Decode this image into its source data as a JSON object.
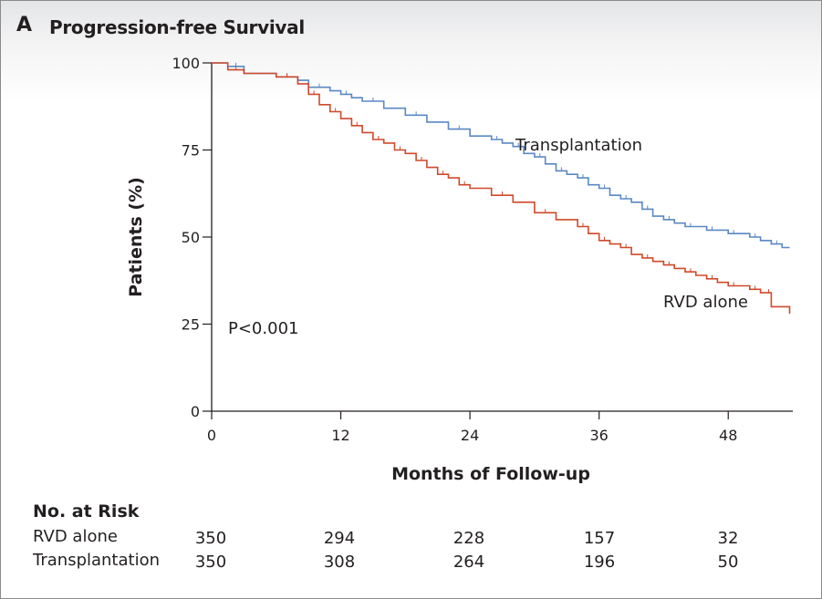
{
  "panel": {
    "label": "A",
    "title": "Progression-free Survival"
  },
  "chart_data": {
    "type": "line",
    "title": "Progression-free Survival",
    "xlabel": "Months of Follow-up",
    "ylabel": "Patients (%)",
    "xlim": [
      0,
      54
    ],
    "ylim": [
      0,
      100
    ],
    "x_ticks": [
      0,
      12,
      24,
      36,
      48
    ],
    "y_ticks": [
      0,
      25,
      50,
      75,
      100
    ],
    "annotation": "P<0.001",
    "series": [
      {
        "name": "Transplantation",
        "color": "#5b88c4",
        "x": [
          0,
          1.5,
          3,
          6,
          8,
          9,
          11,
          12,
          13,
          14,
          16,
          18,
          20,
          22,
          24,
          26,
          27,
          28,
          29,
          30,
          31,
          32,
          33,
          34,
          35,
          36,
          37,
          38,
          39,
          40,
          41,
          42,
          43,
          44,
          45,
          46,
          47,
          48,
          49,
          50,
          51,
          52,
          53,
          53.7
        ],
        "y": [
          100,
          99,
          97,
          96,
          95,
          93,
          92,
          91,
          90,
          89,
          87,
          85,
          83,
          81,
          79,
          78,
          77,
          76,
          74,
          73,
          71,
          69,
          68,
          67,
          65,
          64,
          62,
          61,
          60,
          58,
          56,
          55,
          54,
          53,
          53,
          52,
          52,
          51,
          51,
          50,
          49,
          48,
          47,
          47
        ]
      },
      {
        "name": "RVD alone",
        "color": "#d0492a",
        "x": [
          0,
          1.5,
          3,
          6,
          8,
          9,
          10,
          11,
          12,
          13,
          14,
          15,
          16,
          17,
          18,
          19,
          20,
          21,
          22,
          23,
          24,
          26,
          28,
          30,
          32,
          34,
          35,
          36,
          37,
          38,
          39,
          40,
          41,
          42,
          43,
          44,
          45,
          46,
          47,
          48,
          49,
          50,
          51,
          51.5,
          52,
          53.7
        ],
        "y": [
          100,
          98,
          97,
          96,
          94,
          91,
          88,
          86,
          84,
          82,
          80,
          78,
          77,
          75,
          74,
          72,
          70,
          68,
          67,
          65,
          64,
          62,
          60,
          57,
          55,
          53,
          51,
          49,
          48,
          47,
          45,
          44,
          43,
          42,
          41,
          40,
          39,
          38,
          37,
          36,
          36,
          35,
          34,
          34,
          30,
          28
        ]
      }
    ],
    "labels": [
      {
        "series": "Transplantation",
        "text": "Transplantation"
      },
      {
        "series": "RVD alone",
        "text": "RVD alone"
      }
    ],
    "at_risk": {
      "title": "No. at Risk",
      "months": [
        0,
        12,
        24,
        36,
        48
      ],
      "rows": [
        {
          "label": "RVD alone",
          "values": [
            "350",
            "294",
            "228",
            "157",
            "32"
          ]
        },
        {
          "label": "Transplantation",
          "values": [
            "350",
            "308",
            "264",
            "196",
            "50"
          ]
        }
      ]
    }
  }
}
